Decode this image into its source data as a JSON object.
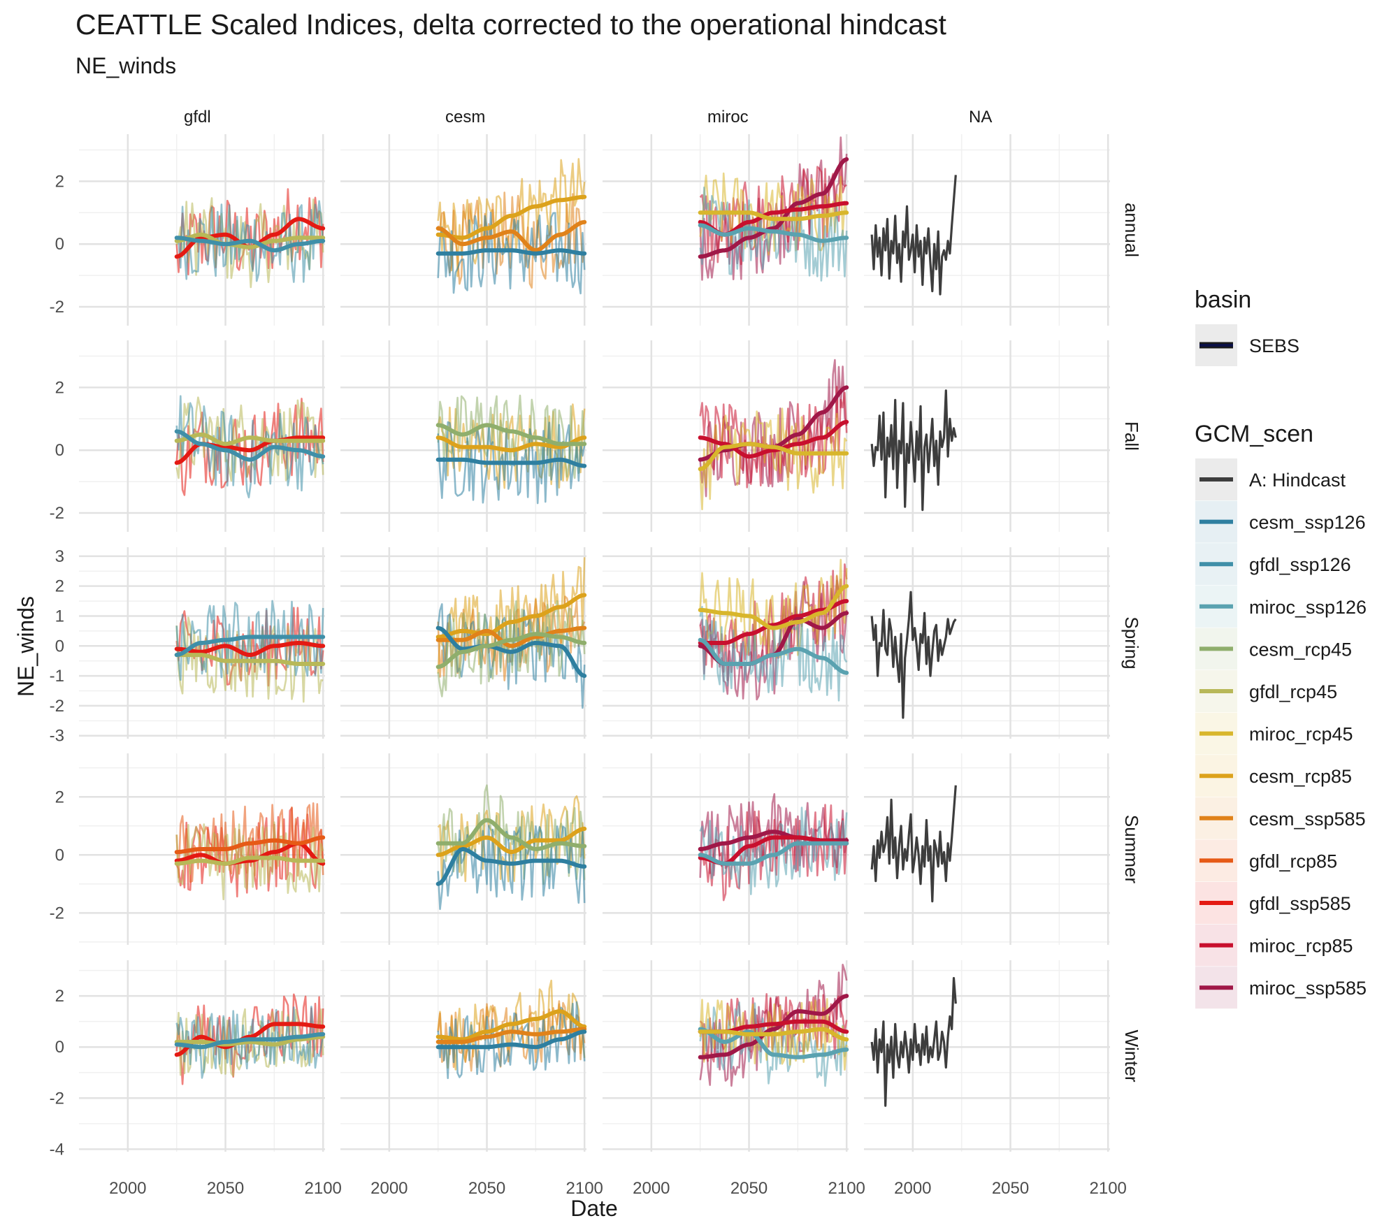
{
  "title": "CEATTLE Scaled Indices, delta corrected to the operational hindcast",
  "subtitle": "NE_winds",
  "chart_data": {
    "type": "line",
    "title": "CEATTLE Scaled Indices, delta corrected to the operational hindcast",
    "subtitle": "NE_winds",
    "xlabel": "Date",
    "ylabel": "NE_winds",
    "xlim": [
      1975,
      2101
    ],
    "x_ticks": [
      "2000",
      "2050",
      "2100"
    ],
    "facet_columns": [
      "gfdl",
      "cesm",
      "miroc",
      "NA"
    ],
    "facet_rows": [
      {
        "label": "annual",
        "ylim": [
          -2.6,
          3.5
        ],
        "y_ticks": [
          "-2",
          "0",
          "2"
        ]
      },
      {
        "label": "Fall",
        "ylim": [
          -2.6,
          3.5
        ],
        "y_ticks": [
          "-2",
          "0",
          "2"
        ]
      },
      {
        "label": "Spring",
        "ylim": [
          -3.1,
          3.3
        ],
        "y_ticks": [
          "-3",
          "-2",
          "-1",
          "0",
          "1",
          "2",
          "3"
        ]
      },
      {
        "label": "Summer",
        "ylim": [
          -3.1,
          3.5
        ],
        "y_ticks": [
          "-2",
          "0",
          "2"
        ]
      },
      {
        "label": "Winter",
        "ylim": [
          -4.1,
          3.4
        ],
        "y_ticks": [
          "-4",
          "-2",
          "0",
          "2"
        ]
      }
    ],
    "grid": true,
    "legend_position": "right",
    "basin_legend": {
      "title": "basin",
      "items": [
        {
          "label": "SEBS",
          "color": "#0b1046"
        }
      ]
    },
    "gcm_legend": {
      "title": "GCM_scen",
      "items": [
        {
          "label": "A: Hindcast",
          "color": "#3d3d3d"
        },
        {
          "label": "cesm_ssp126",
          "color": "#2e7fa0"
        },
        {
          "label": "gfdl_ssp126",
          "color": "#3f8fa8"
        },
        {
          "label": "miroc_ssp126",
          "color": "#5aa2b0"
        },
        {
          "label": "cesm_rcp45",
          "color": "#8fae6c"
        },
        {
          "label": "gfdl_rcp45",
          "color": "#b8b858"
        },
        {
          "label": "miroc_rcp45",
          "color": "#d8b62c"
        },
        {
          "label": "cesm_rcp85",
          "color": "#dca21c"
        },
        {
          "label": "cesm_ssp585",
          "color": "#e0821a"
        },
        {
          "label": "gfdl_rcp85",
          "color": "#e65a16"
        },
        {
          "label": "gfdl_ssp585",
          "color": "#e41a13"
        },
        {
          "label": "miroc_rcp85",
          "color": "#c8102e"
        },
        {
          "label": "miroc_ssp585",
          "color": "#a01848"
        }
      ]
    },
    "projection_years": [
      2025,
      2100
    ],
    "hindcast_years": [
      1979,
      2022
    ],
    "smooth_trends": {
      "gfdl": {
        "annual": {
          "gfdl_ssp585": [
            -0.4,
            0.2,
            0.3,
            -0.1,
            0.3,
            0.8,
            0.5
          ],
          "gfdl_rcp45": [
            0.1,
            0.3,
            0.0,
            -0.1,
            0.1,
            0.2,
            0.2
          ],
          "gfdl_ssp126": [
            0.2,
            0.1,
            0.0,
            0.1,
            -0.2,
            0.0,
            0.1
          ]
        },
        "Fall": {
          "gfdl_ssp585": [
            -0.4,
            0.2,
            0.1,
            0.0,
            0.3,
            0.4,
            0.4
          ],
          "gfdl_rcp45": [
            0.3,
            0.5,
            0.2,
            0.4,
            0.3,
            0.3,
            0.3
          ],
          "gfdl_ssp126": [
            0.6,
            0.2,
            0.0,
            -0.3,
            0.1,
            0.0,
            -0.2
          ]
        },
        "Spring": {
          "gfdl_ssp585": [
            -0.1,
            -0.2,
            0.0,
            -0.3,
            0.0,
            0.1,
            0.0
          ],
          "gfdl_rcp45": [
            -0.3,
            -0.3,
            -0.5,
            -0.5,
            -0.5,
            -0.6,
            -0.6
          ],
          "gfdl_ssp126": [
            -0.3,
            0.1,
            0.2,
            0.3,
            0.3,
            0.3,
            0.3
          ]
        },
        "Summer": {
          "gfdl_ssp585": [
            -0.2,
            0.0,
            -0.3,
            -0.2,
            0.1,
            0.4,
            -0.3
          ],
          "gfdl_rcp85": [
            0.1,
            0.2,
            0.2,
            0.4,
            0.5,
            0.4,
            0.6
          ],
          "gfdl_rcp45": [
            -0.3,
            -0.2,
            -0.3,
            -0.1,
            -0.1,
            -0.2,
            -0.2
          ]
        },
        "Winter": {
          "gfdl_ssp585": [
            -0.3,
            0.4,
            0.0,
            0.4,
            0.9,
            0.9,
            0.8
          ],
          "gfdl_rcp45": [
            0.2,
            0.2,
            0.1,
            0.2,
            0.1,
            0.3,
            0.4
          ],
          "gfdl_ssp126": [
            0.1,
            0.0,
            0.2,
            0.3,
            0.3,
            0.4,
            0.5
          ]
        }
      },
      "cesm": {
        "annual": {
          "cesm_rcp85": [
            0.3,
            0.2,
            0.5,
            0.9,
            1.2,
            1.4,
            1.5
          ],
          "cesm_ssp585": [
            0.5,
            0.0,
            0.2,
            0.4,
            -0.2,
            0.3,
            0.7
          ],
          "cesm_ssp126": [
            -0.3,
            -0.3,
            -0.2,
            -0.2,
            -0.3,
            -0.2,
            -0.3
          ]
        },
        "Fall": {
          "cesm_rcp85": [
            0.4,
            0.1,
            0.1,
            0.0,
            0.2,
            0.1,
            0.4
          ],
          "cesm_rcp45": [
            0.8,
            0.5,
            0.8,
            0.6,
            0.4,
            0.2,
            0.2
          ],
          "cesm_ssp126": [
            -0.3,
            -0.3,
            -0.4,
            -0.4,
            -0.4,
            -0.3,
            -0.5
          ]
        },
        "Spring": {
          "cesm_rcp85": [
            0.3,
            0.5,
            0.4,
            0.8,
            1.0,
            1.3,
            1.7
          ],
          "cesm_ssp585": [
            0.2,
            0.2,
            0.5,
            0.0,
            0.3,
            0.5,
            0.6
          ],
          "cesm_ssp126": [
            0.6,
            -0.1,
            0.0,
            -0.2,
            0.1,
            0.0,
            -1.0
          ],
          "cesm_rcp45": [
            -0.7,
            -0.2,
            0.0,
            0.2,
            0.4,
            0.3,
            0.1
          ]
        },
        "Summer": {
          "cesm_rcp85": [
            0.0,
            0.3,
            0.6,
            0.1,
            0.5,
            0.5,
            0.9
          ],
          "cesm_rcp45": [
            0.4,
            0.4,
            1.2,
            0.6,
            0.2,
            0.4,
            0.3
          ],
          "cesm_ssp126": [
            -1.0,
            0.2,
            -0.2,
            -0.3,
            -0.2,
            -0.2,
            -0.4
          ]
        },
        "Winter": {
          "cesm_rcp85": [
            0.4,
            0.3,
            0.6,
            0.9,
            1.1,
            1.4,
            0.8
          ],
          "cesm_ssp585": [
            0.2,
            0.2,
            0.4,
            0.6,
            0.5,
            0.6,
            0.7
          ],
          "cesm_ssp126": [
            0.0,
            0.0,
            0.0,
            0.1,
            0.0,
            0.3,
            0.6
          ]
        }
      },
      "miroc": {
        "annual": {
          "miroc_ssp585": [
            -0.4,
            -0.2,
            0.2,
            0.5,
            1.3,
            1.6,
            2.7
          ],
          "miroc_rcp85": [
            0.7,
            0.3,
            0.7,
            1.0,
            1.1,
            1.2,
            1.3
          ],
          "miroc_rcp45": [
            1.0,
            1.0,
            1.0,
            0.8,
            0.8,
            0.9,
            1.0
          ],
          "miroc_ssp126": [
            0.6,
            0.3,
            0.5,
            0.4,
            0.3,
            0.1,
            0.2
          ]
        },
        "Fall": {
          "miroc_ssp585": [
            -0.3,
            0.0,
            0.2,
            0.1,
            0.5,
            1.2,
            2.0
          ],
          "miroc_rcp85": [
            0.4,
            0.2,
            -0.2,
            0.0,
            0.2,
            0.4,
            0.9
          ],
          "miroc_rcp45": [
            -0.6,
            0.1,
            0.2,
            0.1,
            -0.1,
            -0.1,
            -0.1
          ]
        },
        "Spring": {
          "miroc_rcp85": [
            0.1,
            0.1,
            0.4,
            0.7,
            1.0,
            1.2,
            1.5
          ],
          "miroc_ssp585": [
            0.0,
            -0.6,
            -0.6,
            -0.3,
            0.9,
            0.6,
            1.1
          ],
          "miroc_rcp45": [
            1.2,
            1.1,
            1.0,
            0.6,
            0.8,
            1.1,
            2.0
          ],
          "miroc_ssp126": [
            0.2,
            -0.6,
            -0.6,
            -0.3,
            -0.1,
            -0.4,
            -0.9
          ]
        },
        "Summer": {
          "miroc_ssp585": [
            0.2,
            0.4,
            0.6,
            0.8,
            0.6,
            0.5,
            0.5
          ],
          "miroc_rcp85": [
            -0.1,
            -0.3,
            0.3,
            0.6,
            0.6,
            0.5,
            0.4
          ],
          "miroc_ssp126": [
            0.0,
            -0.3,
            -0.3,
            0.0,
            0.4,
            0.4,
            0.4
          ]
        },
        "Winter": {
          "miroc_ssp585": [
            -0.4,
            -0.3,
            0.1,
            0.7,
            1.4,
            1.3,
            2.0
          ],
          "miroc_rcp85": [
            0.6,
            0.6,
            0.8,
            0.9,
            1.0,
            1.0,
            0.6
          ],
          "miroc_ssp126": [
            0.7,
            0.2,
            0.6,
            -0.3,
            -0.4,
            -0.3,
            -0.1
          ],
          "miroc_rcp45": [
            0.6,
            0.6,
            0.5,
            0.5,
            0.6,
            0.7,
            0.3
          ]
        }
      }
    },
    "hindcast": {
      "annual": [
        0.3,
        -0.8,
        0.6,
        -0.4,
        0.2,
        -1.0,
        0.5,
        -0.2,
        0.8,
        -1.1,
        0.1,
        -0.3,
        0.9,
        -0.6,
        0.0,
        -1.2,
        0.4,
        -0.1,
        1.2,
        -0.5,
        -0.2,
        0.3,
        -0.9,
        0.6,
        -0.4,
        0.1,
        -1.3,
        0.2,
        -0.3,
        0.5,
        -0.6,
        -1.5,
        0.0,
        -0.8,
        0.4,
        -1.6,
        -0.4,
        -0.2,
        -0.5,
        0.1,
        -0.3,
        0.6,
        1.4,
        2.2
      ],
      "Fall": [
        0.2,
        -0.5,
        0.1,
        0.0,
        1.1,
        -0.3,
        1.2,
        -1.5,
        0.4,
        -0.2,
        0.8,
        -0.6,
        1.6,
        -1.2,
        0.3,
        -0.1,
        1.5,
        -1.8,
        0.2,
        -0.4,
        0.9,
        0.0,
        -1.0,
        0.6,
        -0.3,
        1.4,
        -1.9,
        0.1,
        0.5,
        -0.7,
        0.2,
        1.0,
        -0.5,
        0.3,
        -1.1,
        0.6,
        0.1,
        0.4,
        1.9,
        -0.2,
        1.0,
        0.3,
        0.7,
        0.4
      ],
      "Spring": [
        1.0,
        0.2,
        0.7,
        -1.0,
        0.1,
        0.0,
        1.2,
        -0.1,
        -0.3,
        0.9,
        0.5,
        -0.7,
        0.3,
        -0.5,
        -1.2,
        0.4,
        -2.4,
        -0.4,
        0.2,
        0.9,
        1.8,
        0.2,
        0.6,
        0.0,
        -0.8,
        0.4,
        0.1,
        1.1,
        -0.6,
        0.3,
        -1.0,
        -0.2,
        0.5,
        0.7,
        -0.5,
        0.2,
        -0.3,
        0.0,
        0.3,
        0.9,
        0.4,
        0.6,
        0.8,
        0.9
      ],
      "Summer": [
        -0.5,
        0.3,
        -0.9,
        0.5,
        -0.1,
        0.8,
        0.1,
        0.4,
        1.3,
        -0.3,
        1.9,
        -0.1,
        0.6,
        -0.8,
        0.3,
        1.0,
        -0.5,
        0.2,
        -0.2,
        0.7,
        1.4,
        -0.6,
        -0.1,
        0.6,
        0.0,
        -1.0,
        0.3,
        -0.4,
        1.2,
        -0.2,
        0.3,
        -1.6,
        0.5,
        0.2,
        -0.4,
        0.8,
        -0.3,
        0.1,
        -0.9,
        0.4,
        -0.2,
        0.6,
        1.5,
        2.4
      ],
      "Winter": [
        0.2,
        -0.5,
        0.7,
        -1.0,
        0.3,
        -0.2,
        1.0,
        -2.3,
        0.1,
        -0.6,
        0.4,
        -1.2,
        0.9,
        -0.3,
        -0.8,
        0.2,
        -0.4,
        0.6,
        -0.1,
        -1.0,
        0.3,
        -0.5,
        0.9,
        -0.2,
        0.1,
        -0.7,
        0.5,
        -0.3,
        0.8,
        -0.6,
        0.0,
        -0.4,
        0.3,
        1.0,
        -0.5,
        -0.2,
        0.6,
        0.2,
        -0.8,
        0.4,
        1.2,
        0.7,
        2.7,
        1.7
      ]
    }
  }
}
